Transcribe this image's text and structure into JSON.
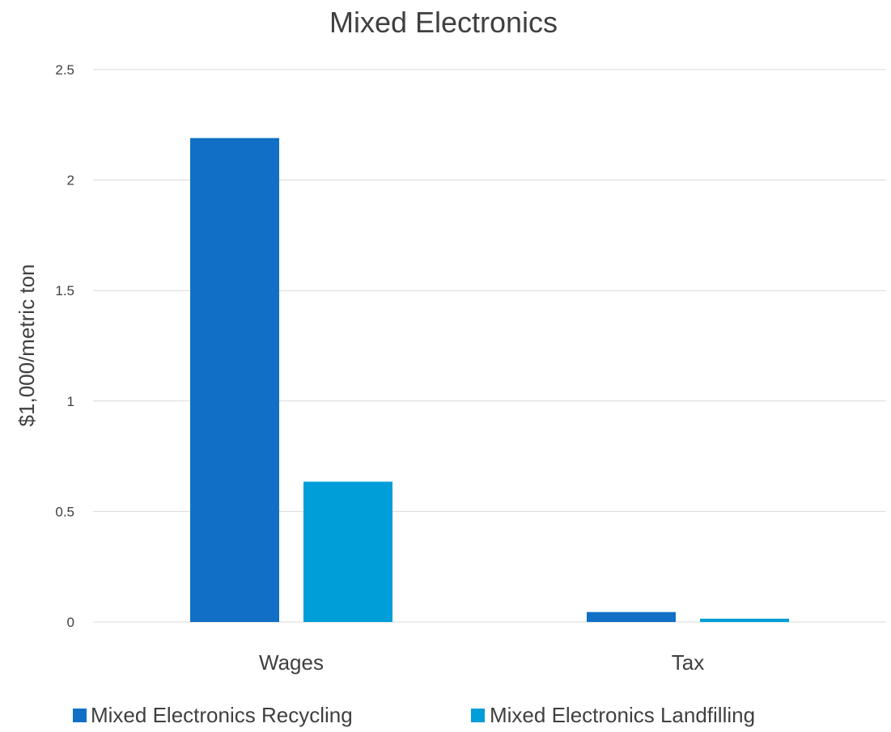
{
  "chart_data": {
    "type": "bar",
    "title": "Mixed Electronics",
    "xlabel": "",
    "ylabel": "$1,000/metric ton",
    "categories": [
      "Wages",
      "Tax"
    ],
    "series": [
      {
        "name": "Mixed Electronics Recycling",
        "color": "#1170c6",
        "values": [
          2.19,
          0.045
        ]
      },
      {
        "name": "Mixed Electronics Landfilling",
        "color": "#009ed8",
        "values": [
          0.635,
          0.015
        ]
      }
    ],
    "ylim": [
      0,
      2.5
    ],
    "yticks": [
      "0",
      "0.5",
      "1",
      "1.5",
      "2",
      "2.5"
    ],
    "grid": true,
    "legend_position": "bottom"
  }
}
